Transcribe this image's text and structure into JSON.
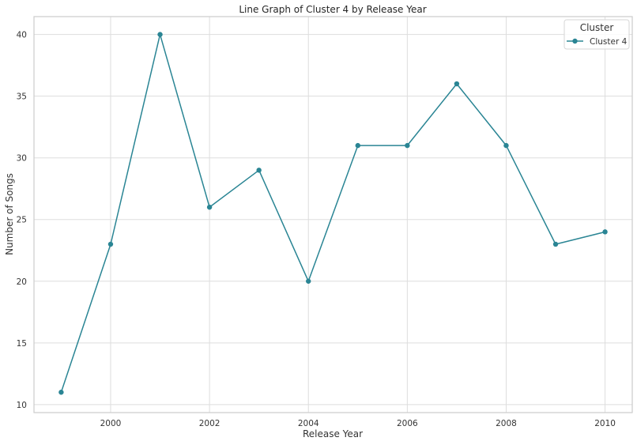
{
  "chart_data": {
    "type": "line",
    "title": "Line Graph of Cluster 4 by Release Year",
    "xlabel": "Release Year",
    "ylabel": "Number of Songs",
    "x": [
      1999,
      2000,
      2001,
      2002,
      2003,
      2004,
      2005,
      2006,
      2007,
      2008,
      2009,
      2010
    ],
    "series": [
      {
        "name": "Cluster 4",
        "values": [
          11,
          23,
          40,
          26,
          29,
          20,
          31,
          31,
          36,
          31,
          23,
          24
        ],
        "color": "#2a8594",
        "marker": "circle"
      }
    ],
    "xticks": [
      2000,
      2002,
      2004,
      2006,
      2008,
      2010
    ],
    "yticks": [
      10,
      15,
      20,
      25,
      30,
      35,
      40
    ],
    "xlim": [
      1998.45,
      2010.55
    ],
    "ylim": [
      9.35,
      41.45
    ],
    "grid": true,
    "legend": {
      "title": "Cluster",
      "position": "upper right",
      "entries": [
        "Cluster 4"
      ]
    }
  },
  "colors": {
    "line": "#2a8594",
    "grid": "#dddddd",
    "spine": "#cccccc",
    "background": "#ffffff"
  }
}
